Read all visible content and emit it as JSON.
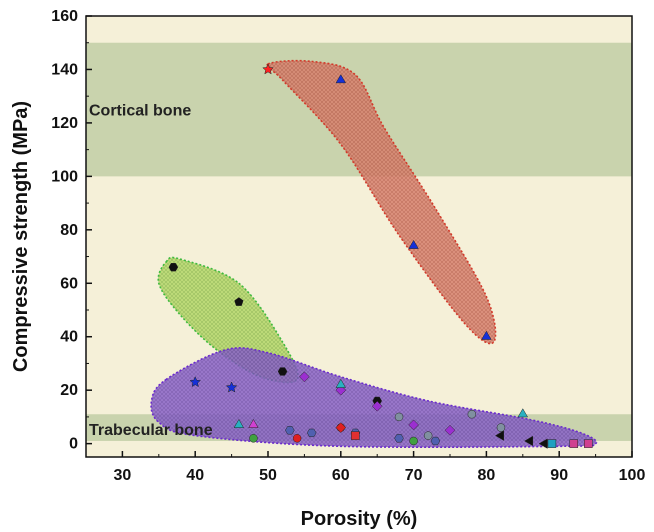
{
  "chart_data": {
    "type": "scatter",
    "xlabel": "Porosity (%)",
    "ylabel": "Compressive strength (MPa)",
    "xlim": [
      25,
      100
    ],
    "ylim": [
      -5,
      160
    ],
    "xticks": [
      "30",
      "40",
      "50",
      "60",
      "70",
      "80",
      "90",
      "100"
    ],
    "yticks": [
      "0",
      "20",
      "40",
      "60",
      "80",
      "100",
      "120",
      "140",
      "160"
    ],
    "grid": false,
    "legend": "none",
    "colors": {
      "background": "#f5f0d8",
      "band": "#c4cfa8",
      "red_region": "#d9826f",
      "green_region": "#b5d86a",
      "purple_region": "#8a63c9"
    },
    "bands": [
      {
        "label": "Cortical bone",
        "y_range": [
          100,
          150
        ]
      },
      {
        "label": "Trabecular bone",
        "y_range": [
          1,
          11
        ]
      }
    ],
    "regions": [
      {
        "color": "red",
        "points": [
          [
            50,
            140
          ],
          [
            60,
            136
          ],
          [
            70,
            74
          ],
          [
            80,
            40
          ]
        ]
      },
      {
        "color": "green",
        "points": [
          [
            37,
            66
          ],
          [
            46,
            53
          ],
          [
            52,
            27
          ]
        ]
      },
      {
        "color": "purple",
        "points": [
          [
            40,
            23
          ],
          [
            45,
            21
          ],
          [
            55,
            25
          ],
          [
            60,
            20
          ],
          [
            65,
            16
          ],
          [
            80,
            2
          ],
          [
            88,
            0
          ],
          [
            94,
            0
          ]
        ]
      }
    ],
    "series": [
      {
        "marker": "star",
        "color": "#ff2020",
        "points": [
          [
            50,
            140
          ]
        ]
      },
      {
        "marker": "triangle",
        "color": "#1530d8",
        "points": [
          [
            60,
            136
          ],
          [
            70,
            74
          ],
          [
            80,
            40
          ]
        ]
      },
      {
        "marker": "hexagon",
        "color": "#111111",
        "points": [
          [
            37,
            66
          ],
          [
            52,
            27
          ],
          [
            65,
            16
          ]
        ]
      },
      {
        "marker": "pentagon",
        "color": "#111111",
        "points": [
          [
            46,
            53
          ]
        ]
      },
      {
        "marker": "star",
        "color": "#1530d8",
        "points": [
          [
            40,
            23
          ],
          [
            45,
            21
          ]
        ]
      },
      {
        "marker": "diamond",
        "color": "#9b2fd0",
        "points": [
          [
            55,
            25
          ],
          [
            60,
            20
          ],
          [
            65,
            14
          ],
          [
            70,
            7
          ],
          [
            75,
            5
          ]
        ]
      },
      {
        "marker": "triangle",
        "color": "#2ab0c0",
        "points": [
          [
            46,
            7
          ],
          [
            85,
            11
          ],
          [
            60,
            22
          ]
        ]
      },
      {
        "marker": "triangle",
        "color": "#d040d0",
        "points": [
          [
            48,
            7
          ]
        ]
      },
      {
        "marker": "circle",
        "color": "#40a040",
        "points": [
          [
            48,
            2
          ],
          [
            70,
            1
          ]
        ]
      },
      {
        "marker": "circle",
        "color": "#e02020",
        "points": [
          [
            54,
            2
          ],
          [
            60,
            6
          ]
        ]
      },
      {
        "marker": "hexagon",
        "color": "#5060b0",
        "points": [
          [
            53,
            5
          ],
          [
            56,
            4
          ],
          [
            62,
            4
          ],
          [
            68,
            2
          ],
          [
            73,
            1
          ]
        ]
      },
      {
        "marker": "square",
        "color": "#e03030",
        "points": [
          [
            62,
            3
          ]
        ]
      },
      {
        "marker": "diamond",
        "color": "#e02020",
        "points": [
          [
            60,
            6
          ]
        ]
      },
      {
        "marker": "circle",
        "color": "#8090a0",
        "points": [
          [
            68,
            10
          ],
          [
            72,
            3
          ],
          [
            78,
            11
          ],
          [
            82,
            6
          ]
        ]
      },
      {
        "marker": "triangle-left",
        "color": "#111111",
        "points": [
          [
            82,
            3
          ],
          [
            86,
            1
          ],
          [
            88,
            0
          ]
        ]
      },
      {
        "marker": "square",
        "color": "#d04090",
        "points": [
          [
            92,
            0
          ],
          [
            94,
            0
          ]
        ]
      },
      {
        "marker": "square",
        "color": "#20a0c0",
        "points": [
          [
            89,
            0
          ]
        ]
      }
    ]
  }
}
